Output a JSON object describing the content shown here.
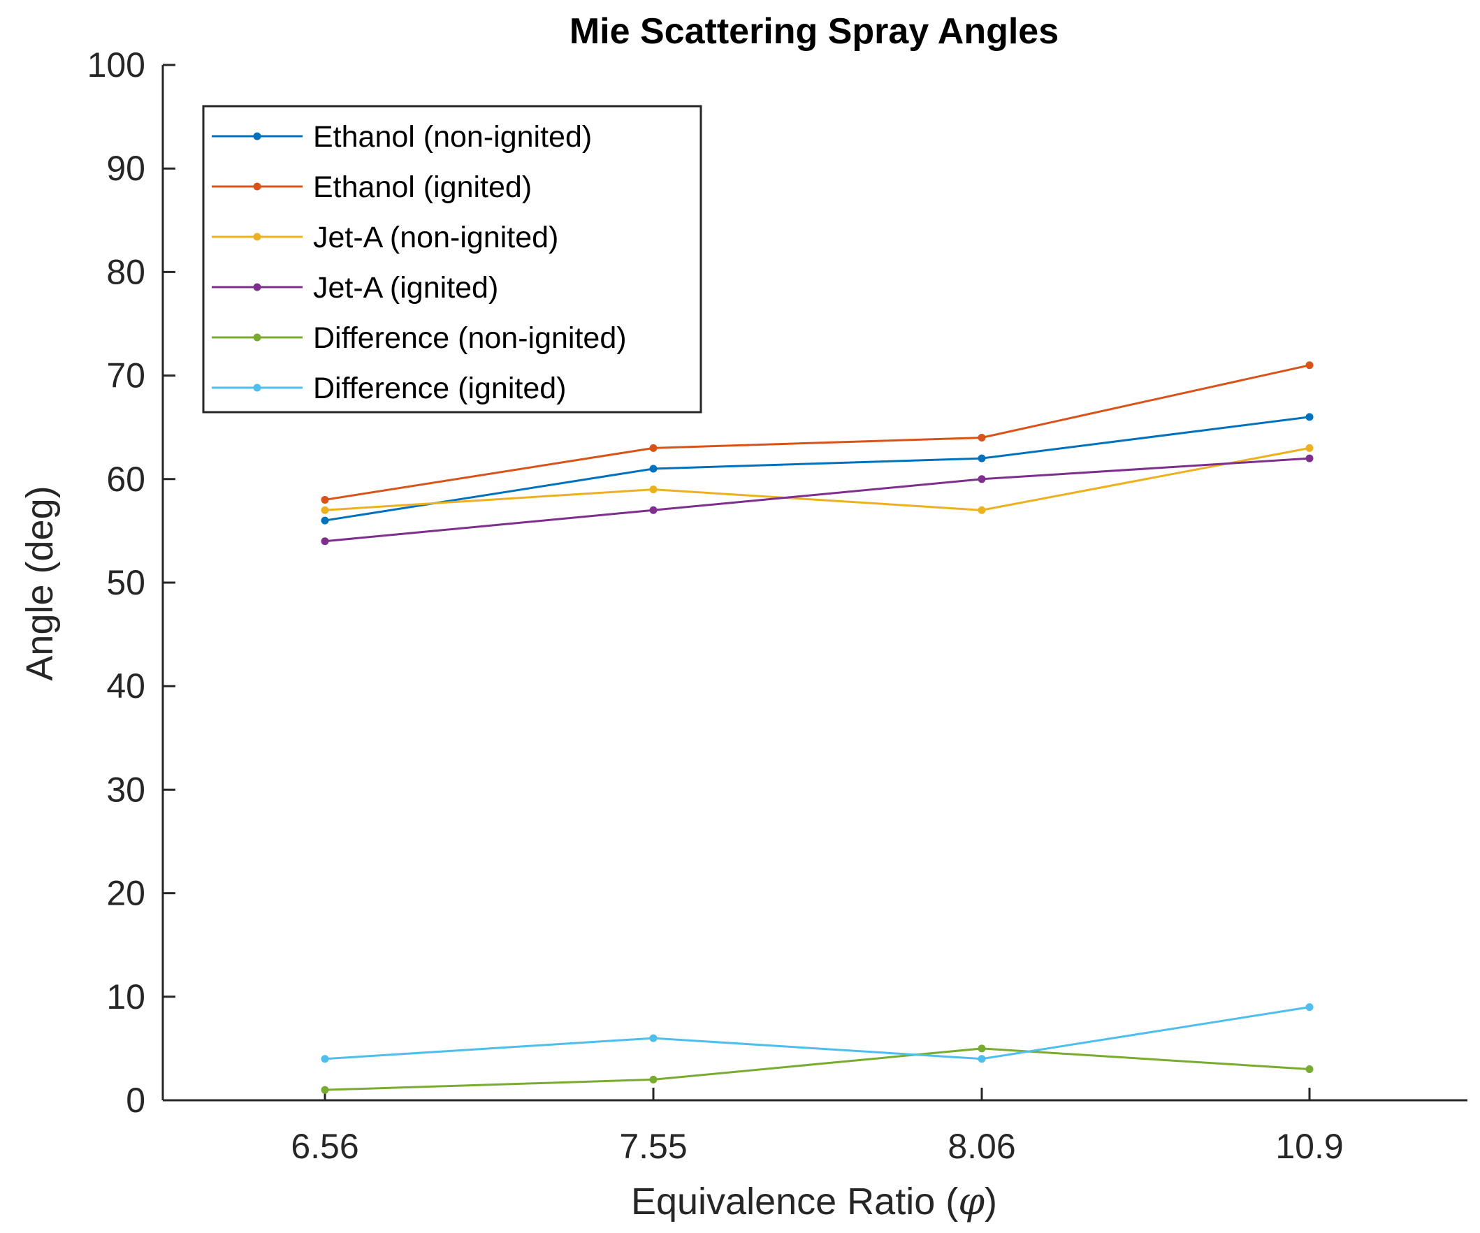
{
  "chart_data": {
    "type": "line",
    "title": "Mie Scattering Spray Angles",
    "xlabel_prefix": "Equivalence Ratio (",
    "xlabel_symbol": "φ",
    "xlabel_suffix": ")",
    "ylabel": "Angle (deg)",
    "categories": [
      "6.56",
      "7.55",
      "8.06",
      "10.9"
    ],
    "ylim": [
      0,
      100
    ],
    "yticks": [
      0,
      10,
      20,
      30,
      40,
      50,
      60,
      70,
      80,
      90,
      100
    ],
    "legend_position": "top-left",
    "grid": false,
    "series": [
      {
        "name": "Ethanol (non-ignited)",
        "color": "#0072BD",
        "values": [
          56,
          61,
          62,
          66
        ]
      },
      {
        "name": "Ethanol (ignited)",
        "color": "#D95319",
        "values": [
          58,
          63,
          64,
          71
        ]
      },
      {
        "name": "Jet-A (non-ignited)",
        "color": "#EDB120",
        "values": [
          57,
          59,
          57,
          63
        ]
      },
      {
        "name": "Jet-A (ignited)",
        "color": "#7E2F8E",
        "values": [
          54,
          57,
          60,
          62
        ]
      },
      {
        "name": "Difference (non-ignited)",
        "color": "#77AC30",
        "values": [
          1,
          2,
          5,
          3
        ]
      },
      {
        "name": "Difference (ignited)",
        "color": "#4DBEEE",
        "values": [
          4,
          6,
          4,
          9
        ]
      }
    ]
  }
}
